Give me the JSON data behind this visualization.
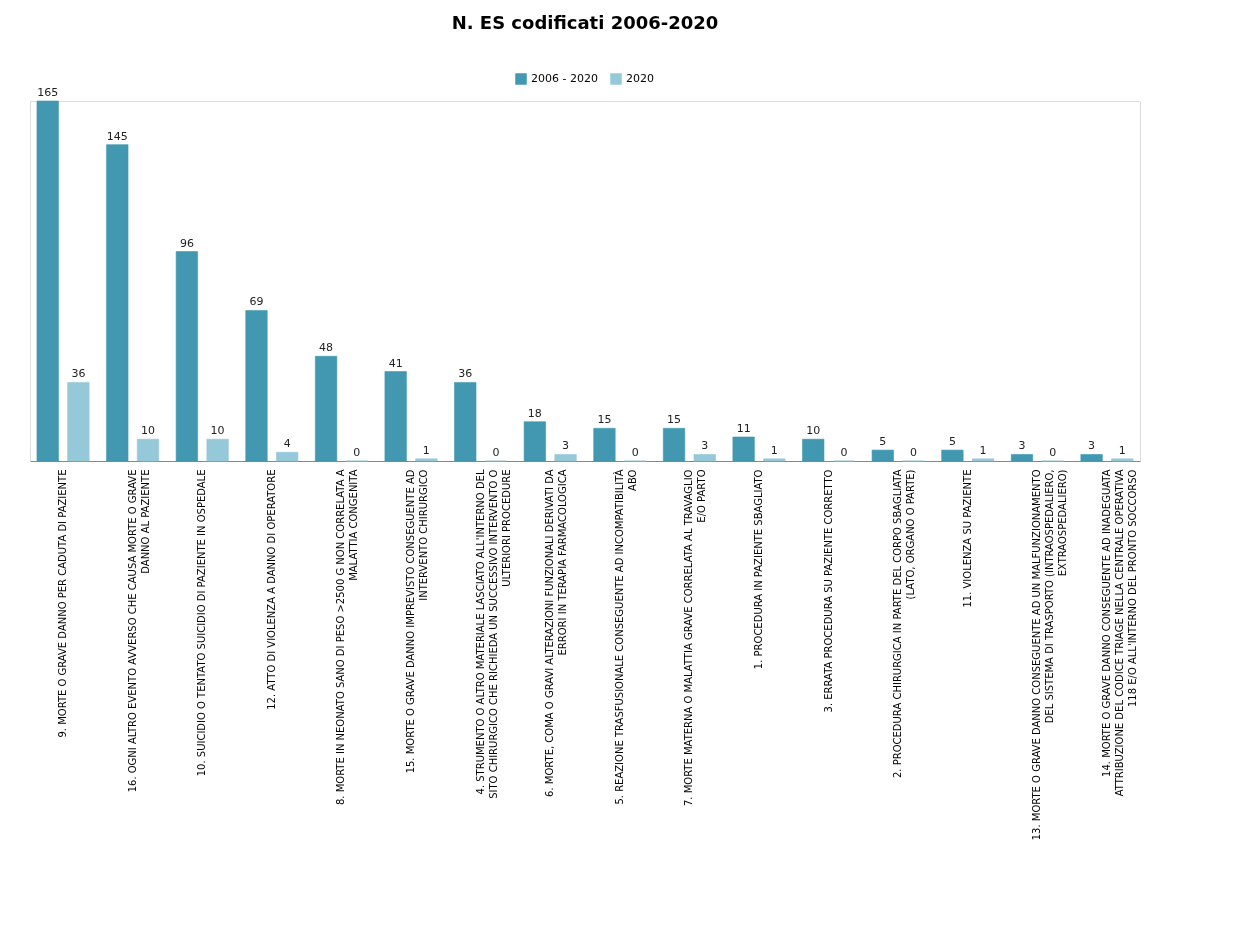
{
  "chart_data": {
    "type": "bar",
    "title": "N. ES codificati 2006-2020",
    "categories": [
      "9.  MORTE O GRAVE DANNO PER CADUTA DI PAZIENTE",
      "16. OGNI ALTRO EVENTO AVVERSO CHE CAUSA MORTE O GRAVE DANNO AL PAZIENTE",
      "10. SUICIDIO O TENTATO SUICIDIO DI PAZIENTE IN OSPEDALE",
      "12. ATTO DI VIOLENZA A DANNO DI OPERATORE",
      "8.  MORTE IN NEONATO SANO DI PESO >2500 G NON CORRELATA A MALATTIA CONGENITA",
      "15. MORTE O GRAVE DANNO IMPREVISTO CONSEGUENTE AD INTERVENTO CHIRURGICO",
      "4.  STRUMENTO O ALTRO MATERIALE LASCIATO ALL'INTERNO DEL SITO CHIRURGICO CHE RICHIEDA UN SUCCESSIVO INTERVENTO O ULTERIORI PROCEDURE",
      "6.  MORTE, COMA O GRAVI ALTERAZIONI FUNZIONALI DERIVATI DA ERRORI IN TERAPIA FARMACOLOGICA",
      "5.  REAZIONE TRASFUSIONALE CONSEGUENTE AD INCOMPATIBILITÀ ABO",
      "7.  MORTE MATERNA O MALATTIA GRAVE CORRELATA AL TRAVAGLIO E/O PARTO",
      "1.  PROCEDURA IN PAZIENTE SBAGLIATO",
      "3.  ERRATA PROCEDURA SU PAZIENTE CORRETTO",
      "2.  PROCEDURA CHIRURGICA IN PARTE DEL CORPO SBAGLIATA (LATO, ORGANO O PARTE)",
      "11. VIOLENZA SU PAZIENTE",
      "13. MORTE O GRAVE DANNO CONSEGUENTE AD UN MALFUNZIONAMENTO DEL SISTEMA DI TRASPORTO (INTRAOSPEDALIERO, EXTRAOSPEDALIERO)",
      "14. MORTE O GRAVE DANNO CONSEGUENTE AD INADEGUATA ATTRIBUZIONE DEL CODICE TRIAGE NELLA CENTRALE OPERATIVA 118 E/O ALL'INTERNO DEL PRONTO SOCCORSO"
    ],
    "series": [
      {
        "name": "2006 - 2020",
        "color": "#4198b0",
        "values": [
          165,
          145,
          96,
          69,
          48,
          41,
          36,
          18,
          15,
          15,
          11,
          10,
          5,
          5,
          3,
          3
        ]
      },
      {
        "name": "2020",
        "color": "#95c8d8",
        "values": [
          36,
          10,
          10,
          4,
          0,
          1,
          0,
          3,
          0,
          3,
          1,
          0,
          0,
          1,
          0,
          1
        ]
      }
    ],
    "data_labels": true,
    "legend": "top",
    "grid": false
  }
}
